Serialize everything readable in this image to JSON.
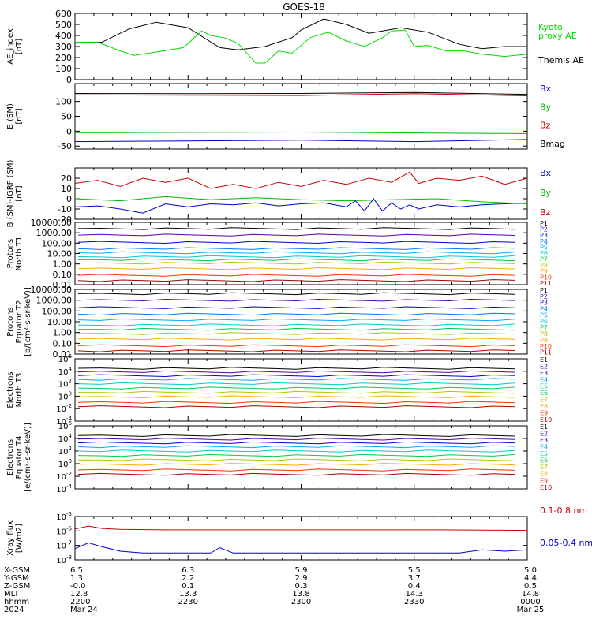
{
  "title": "GOES-18",
  "chart_data": [
    {
      "type": "line",
      "panel": "ae",
      "ylabel": [
        "AE_index",
        "[nT]"
      ],
      "ylim": [
        0,
        600
      ],
      "yticks": [
        "0",
        "100",
        "200",
        "300",
        "400",
        "500",
        "600"
      ],
      "legend": [
        {
          "text": "Kyoto",
          "color": "#00dd00"
        },
        {
          "text": "proxy AE",
          "color": "#00dd00"
        },
        {
          "text": "Themis AE",
          "color": "#000000"
        }
      ],
      "series": [
        {
          "name": "Themis AE",
          "color": "#000000",
          "x": [
            0,
            0.06,
            0.12,
            0.18,
            0.25,
            0.32,
            0.36,
            0.42,
            0.48,
            0.5,
            0.55,
            0.6,
            0.65,
            0.72,
            0.78,
            0.85,
            0.9,
            0.95,
            1.0
          ],
          "y": [
            330,
            340,
            460,
            520,
            470,
            290,
            270,
            300,
            380,
            450,
            550,
            500,
            420,
            470,
            430,
            320,
            280,
            300,
            300
          ]
        },
        {
          "name": "Kyoto proxy AE",
          "color": "#00dd00",
          "x": [
            0,
            0.05,
            0.1,
            0.13,
            0.18,
            0.24,
            0.28,
            0.3,
            0.33,
            0.36,
            0.4,
            0.42,
            0.45,
            0.48,
            0.52,
            0.56,
            0.6,
            0.64,
            0.68,
            0.7,
            0.73,
            0.75,
            0.78,
            0.82,
            0.86,
            0.9,
            0.95,
            1.0
          ],
          "y": [
            340,
            340,
            260,
            220,
            250,
            290,
            440,
            400,
            380,
            330,
            150,
            150,
            260,
            240,
            380,
            430,
            350,
            300,
            380,
            440,
            450,
            300,
            310,
            260,
            260,
            230,
            210,
            230
          ]
        }
      ]
    },
    {
      "type": "line",
      "panel": "b_sm",
      "ylabel": [
        "B (SM)",
        "[nT]"
      ],
      "ylim": [
        -60,
        160
      ],
      "yticks": [
        "-50",
        "0",
        "50",
        "100"
      ],
      "legend": [
        {
          "text": "Bx",
          "color": "#0000cc"
        },
        {
          "text": "By",
          "color": "#00bb00"
        },
        {
          "text": "Bz",
          "color": "#cc0000"
        },
        {
          "text": "Bmag",
          "color": "#000000"
        }
      ],
      "series": [
        {
          "name": "Bmag",
          "color": "#000000",
          "x": [
            0,
            0.25,
            0.5,
            0.75,
            1.0
          ],
          "y": [
            127,
            126,
            127,
            130,
            124
          ]
        },
        {
          "name": "Bz",
          "color": "#cc0000",
          "x": [
            0,
            0.25,
            0.5,
            0.75,
            1.0
          ],
          "y": [
            122,
            121,
            120,
            126,
            119
          ]
        },
        {
          "name": "By",
          "color": "#00bb00",
          "x": [
            0,
            0.25,
            0.5,
            0.75,
            1.0
          ],
          "y": [
            -5,
            -4,
            -3,
            -6,
            -8
          ]
        },
        {
          "name": "Bx",
          "color": "#0000cc",
          "x": [
            0,
            0.25,
            0.5,
            0.75,
            1.0
          ],
          "y": [
            -35,
            -33,
            -30,
            -35,
            -28
          ]
        }
      ]
    },
    {
      "type": "line",
      "panel": "b_igrf",
      "ylabel": [
        "B (SM)-IGRF (SM)",
        "[nT]"
      ],
      "ylim": [
        -20,
        30
      ],
      "yticks": [
        "-20",
        "-10",
        "0",
        "10",
        "20"
      ],
      "legend": [
        {
          "text": "Bx",
          "color": "#0000cc"
        },
        {
          "text": "By",
          "color": "#00bb00"
        },
        {
          "text": "Bz",
          "color": "#cc0000"
        }
      ],
      "series": [
        {
          "name": "Bz",
          "color": "#cc0000",
          "x": [
            0,
            0.05,
            0.1,
            0.15,
            0.2,
            0.25,
            0.3,
            0.35,
            0.4,
            0.45,
            0.5,
            0.55,
            0.6,
            0.65,
            0.7,
            0.74,
            0.76,
            0.8,
            0.85,
            0.9,
            0.95,
            1.0
          ],
          "y": [
            15,
            18,
            12,
            20,
            16,
            20,
            10,
            14,
            10,
            16,
            12,
            18,
            14,
            20,
            16,
            26,
            15,
            20,
            18,
            22,
            14,
            20
          ]
        },
        {
          "name": "By",
          "color": "#00bb00",
          "x": [
            0,
            0.1,
            0.2,
            0.3,
            0.4,
            0.5,
            0.6,
            0.7,
            0.8,
            0.9,
            1.0
          ],
          "y": [
            0,
            -2,
            2,
            -1,
            1,
            -1,
            -2,
            -1,
            0,
            -3,
            -5
          ]
        },
        {
          "name": "Bx",
          "color": "#0000cc",
          "x": [
            0,
            0.05,
            0.1,
            0.15,
            0.2,
            0.25,
            0.3,
            0.35,
            0.4,
            0.45,
            0.5,
            0.55,
            0.6,
            0.62,
            0.64,
            0.66,
            0.68,
            0.7,
            0.72,
            0.74,
            0.76,
            0.8,
            0.85,
            0.9,
            0.95,
            1.0
          ],
          "y": [
            -8,
            -7,
            -10,
            -14,
            -5,
            -8,
            -5,
            -6,
            -4,
            -7,
            -5,
            -4,
            -8,
            -2,
            -12,
            0,
            -12,
            -4,
            -10,
            -6,
            -10,
            -6,
            -8,
            -6,
            -5,
            -4
          ]
        }
      ]
    },
    {
      "type": "line",
      "panel": "protons_t1",
      "ylabel": [
        "Protons",
        "North T1"
      ],
      "yscale": "log",
      "ylim": [
        0.01,
        10000
      ],
      "yticks": [
        "0.01",
        "0.10",
        "1.00",
        "10.00",
        "100.00",
        "1000.00",
        "10000.00"
      ],
      "legend": [
        {
          "text": "P1",
          "color": "#000000"
        },
        {
          "text": "P2",
          "color": "#5500aa"
        },
        {
          "text": "P3",
          "color": "#0000dd"
        },
        {
          "text": "P4",
          "color": "#0077ff"
        },
        {
          "text": "P5",
          "color": "#00aaff"
        },
        {
          "text": "P6",
          "color": "#00cccc"
        },
        {
          "text": "P7",
          "color": "#00cc55"
        },
        {
          "text": "P8",
          "color": "#aacc00"
        },
        {
          "text": "P9",
          "color": "#ffaa00"
        },
        {
          "text": "P10",
          "color": "#ff3300"
        },
        {
          "text": "P11",
          "color": "#aa0000"
        }
      ],
      "series_levels": [
        2500,
        600,
        120,
        30,
        12,
        5,
        2.5,
        1.2,
        0.35,
        0.08,
        0.025
      ]
    },
    {
      "type": "line",
      "panel": "protons_t2",
      "ylabel": [
        "Protons",
        "Equator T2",
        "[p/(cm²-s-sr-keV)]"
      ],
      "yscale": "log",
      "ylim": [
        0.01,
        10000
      ],
      "yticks": [
        "0.01",
        "0.10",
        "1.00",
        "10.00",
        "100.00",
        "1000.00",
        "10000.00"
      ],
      "legend": [
        {
          "text": "P1",
          "color": "#000000"
        },
        {
          "text": "P2",
          "color": "#5500aa"
        },
        {
          "text": "P3",
          "color": "#0000dd"
        },
        {
          "text": "P4",
          "color": "#0077ff"
        },
        {
          "text": "P5",
          "color": "#00aaff"
        },
        {
          "text": "P6",
          "color": "#00cccc"
        },
        {
          "text": "P7",
          "color": "#00cc55"
        },
        {
          "text": "P8",
          "color": "#aacc00"
        },
        {
          "text": "P9",
          "color": "#ffaa00"
        },
        {
          "text": "P10",
          "color": "#ff3300"
        },
        {
          "text": "P11",
          "color": "#aa0000"
        }
      ],
      "series_levels": [
        4000,
        1000,
        200,
        50,
        15,
        5,
        2,
        0.8,
        0.25,
        0.06,
        0.02
      ]
    },
    {
      "type": "line",
      "panel": "electrons_t3",
      "ylabel": [
        "Electrons",
        "North T3"
      ],
      "yscale": "log",
      "ylim": [
        0.0001,
        1000000
      ],
      "yticks": [
        [
          "10",
          "-4"
        ],
        [
          "10",
          "-2"
        ],
        [
          "10",
          "0"
        ],
        [
          "10",
          "2"
        ],
        [
          "10",
          "4"
        ],
        [
          "10",
          "6"
        ]
      ],
      "legend": [
        {
          "text": "E1",
          "color": "#000000"
        },
        {
          "text": "E2",
          "color": "#5500aa"
        },
        {
          "text": "E3",
          "color": "#0000dd"
        },
        {
          "text": "E4",
          "color": "#00aaff"
        },
        {
          "text": "E5",
          "color": "#00cccc"
        },
        {
          "text": "E6",
          "color": "#00cc55"
        },
        {
          "text": "E7",
          "color": "#aacc00"
        },
        {
          "text": "E8",
          "color": "#ffaa00"
        },
        {
          "text": "E9",
          "color": "#ff3300"
        },
        {
          "text": "E10",
          "color": "#aa0000"
        }
      ],
      "series_levels": [
        30000,
        8000,
        2000,
        500,
        100,
        20,
        4,
        0.8,
        0.1,
        0.02
      ]
    },
    {
      "type": "line",
      "panel": "electrons_t4",
      "ylabel": [
        "Electrons",
        "Equator T4",
        "[e/(cm²-s-sr-keV)]"
      ],
      "yscale": "log",
      "ylim": [
        0.0001,
        1000000
      ],
      "yticks": [
        [
          "10",
          "-4"
        ],
        [
          "10",
          "-2"
        ],
        [
          "10",
          "0"
        ],
        [
          "10",
          "2"
        ],
        [
          "10",
          "4"
        ],
        [
          "10",
          "6"
        ]
      ],
      "legend": [
        {
          "text": "E1",
          "color": "#000000"
        },
        {
          "text": "E2",
          "color": "#5500aa"
        },
        {
          "text": "E3",
          "color": "#0000dd"
        },
        {
          "text": "E4",
          "color": "#00aaff"
        },
        {
          "text": "E5",
          "color": "#00cccc"
        },
        {
          "text": "E6",
          "color": "#00cc55"
        },
        {
          "text": "E7",
          "color": "#aacc00"
        },
        {
          "text": "E8",
          "color": "#ffaa00"
        },
        {
          "text": "E9",
          "color": "#ff3300"
        },
        {
          "text": "E10",
          "color": "#aa0000"
        }
      ],
      "series_levels": [
        30000,
        8000,
        2000,
        500,
        100,
        20,
        4,
        0.8,
        0.1,
        0.02
      ]
    },
    {
      "type": "line",
      "panel": "xray",
      "ylabel": [
        "Xray flux",
        "[W/m2]"
      ],
      "yscale": "log",
      "ylim": [
        1e-08,
        1e-05
      ],
      "yticks": [
        [
          "10",
          "-8"
        ],
        [
          "10",
          "-7"
        ],
        [
          "10",
          "-6"
        ],
        [
          "10",
          "-5"
        ]
      ],
      "legend": [
        {
          "text": "0.1-0.8 nm",
          "color": "#cc0000"
        },
        {
          "text": "0.05-0.4 nm",
          "color": "#0000cc"
        }
      ],
      "series": [
        {
          "name": "0.1-0.8 nm",
          "color": "#cc0000",
          "x": [
            0,
            0.03,
            0.06,
            0.1,
            0.2,
            0.4,
            0.6,
            0.8,
            1.0
          ],
          "y": [
            1.4e-06,
            2.2e-06,
            1.5e-06,
            1.3e-06,
            1.2e-06,
            1.2e-06,
            1.2e-06,
            1.2e-06,
            1.1e-06
          ]
        },
        {
          "name": "0.05-0.4 nm",
          "color": "#0000cc",
          "x": [
            0,
            0.03,
            0.06,
            0.1,
            0.15,
            0.25,
            0.3,
            0.32,
            0.35,
            0.45,
            0.55,
            0.65,
            0.75,
            0.85,
            0.9,
            0.95,
            1.0
          ],
          "y": [
            6e-08,
            1.5e-07,
            8e-08,
            4e-08,
            3e-08,
            3e-08,
            3e-08,
            7e-08,
            3e-08,
            3e-08,
            3e-08,
            3e-08,
            3e-08,
            3e-08,
            5e-08,
            4e-08,
            5e-08
          ]
        }
      ]
    }
  ],
  "x_axis_table": {
    "row_labels": [
      "X-GSM",
      "Y-GSM",
      "Z-GSM",
      "MLT",
      "hhmm",
      "2024"
    ],
    "columns": [
      [
        "6.5",
        "1.3",
        "-0.0",
        "12.8",
        "2200",
        "Mar 24"
      ],
      [
        "6.3",
        "2.2",
        "0.1",
        "13.3",
        "2230",
        ""
      ],
      [
        "5.9",
        "2.9",
        "0.3",
        "13.8",
        "2300",
        ""
      ],
      [
        "5.5",
        "3.7",
        "0.4",
        "14.3",
        "2330",
        ""
      ],
      [
        "5.0",
        "4.4",
        "0.5",
        "14.8",
        "0000",
        "Mar 25"
      ]
    ]
  }
}
